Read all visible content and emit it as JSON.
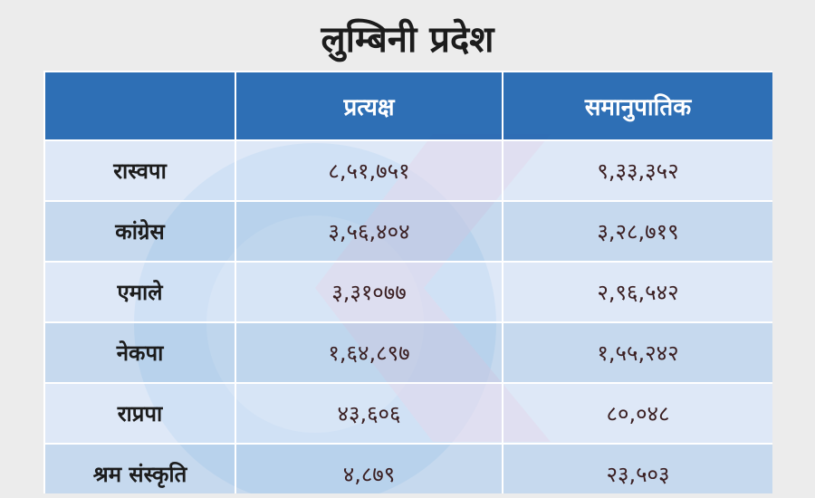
{
  "title": "लुम्बिनी प्रदेश",
  "header": {
    "party": "",
    "direct": "प्रत्यक्ष",
    "proportional": "समानुपातिक"
  },
  "rows": [
    {
      "party": "रास्वपा",
      "direct": "८,५१,७५१",
      "proportional": "९,३३,३५२"
    },
    {
      "party": "कांग्रेस",
      "direct": "३,५६,४०४",
      "proportional": "३,२८,७१९"
    },
    {
      "party": "एमाले",
      "direct": "३,३१०७७",
      "proportional": "२,९६,५४२"
    },
    {
      "party": "नेकपा",
      "direct": "१,६४,८९७",
      "proportional": "१,५५,२४२"
    },
    {
      "party": "राप्रपा",
      "direct": "४३,६०६",
      "proportional": "८०,०४८"
    },
    {
      "party": "श्रम संस्कृति",
      "direct": "४,८७९",
      "proportional": "२३,५०३"
    }
  ],
  "colors": {
    "header_bg": "#1e64af",
    "row_light": "#dce8f7",
    "row_dark": "#b1cce8",
    "page_bg": "#ececec"
  }
}
